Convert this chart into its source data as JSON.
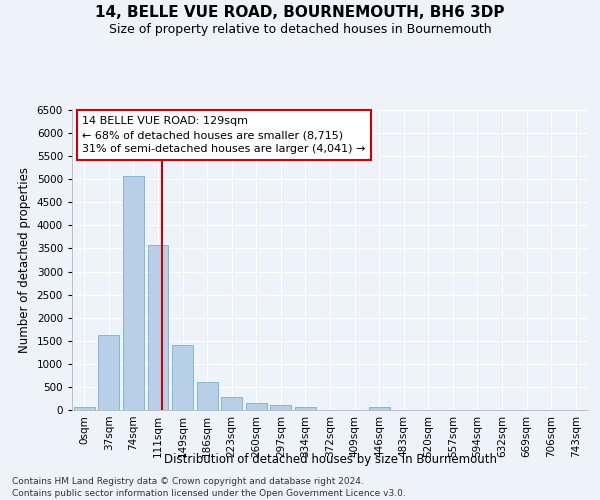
{
  "title": "14, BELLE VUE ROAD, BOURNEMOUTH, BH6 3DP",
  "subtitle": "Size of property relative to detached houses in Bournemouth",
  "xlabel": "Distribution of detached houses by size in Bournemouth",
  "ylabel": "Number of detached properties",
  "bar_labels": [
    "0sqm",
    "37sqm",
    "74sqm",
    "111sqm",
    "149sqm",
    "186sqm",
    "223sqm",
    "260sqm",
    "297sqm",
    "334sqm",
    "372sqm",
    "409sqm",
    "446sqm",
    "483sqm",
    "520sqm",
    "557sqm",
    "594sqm",
    "632sqm",
    "669sqm",
    "706sqm",
    "743sqm"
  ],
  "bar_values": [
    70,
    1630,
    5060,
    3570,
    1410,
    610,
    290,
    145,
    105,
    70,
    0,
    0,
    70,
    0,
    0,
    0,
    0,
    0,
    0,
    0,
    0
  ],
  "bar_color": "#b8cfe8",
  "bar_edge_color": "#7aaed6",
  "vline_x": 3.18,
  "vline_color": "#cc0000",
  "ylim": [
    0,
    6500
  ],
  "yticks": [
    0,
    500,
    1000,
    1500,
    2000,
    2500,
    3000,
    3500,
    4000,
    4500,
    5000,
    5500,
    6000,
    6500
  ],
  "annotation_text": "14 BELLE VUE ROAD: 129sqm\n← 68% of detached houses are smaller (8,715)\n31% of semi-detached houses are larger (4,041) →",
  "annotation_box_color": "#ffffff",
  "annotation_box_edge": "#cc0000",
  "footer1": "Contains HM Land Registry data © Crown copyright and database right 2024.",
  "footer2": "Contains public sector information licensed under the Open Government Licence v3.0.",
  "background_color": "#eef2f9",
  "grid_color": "#ffffff",
  "title_fontsize": 11,
  "subtitle_fontsize": 9,
  "axis_label_fontsize": 8.5,
  "tick_fontsize": 7.5,
  "annotation_fontsize": 8,
  "footer_fontsize": 6.5
}
